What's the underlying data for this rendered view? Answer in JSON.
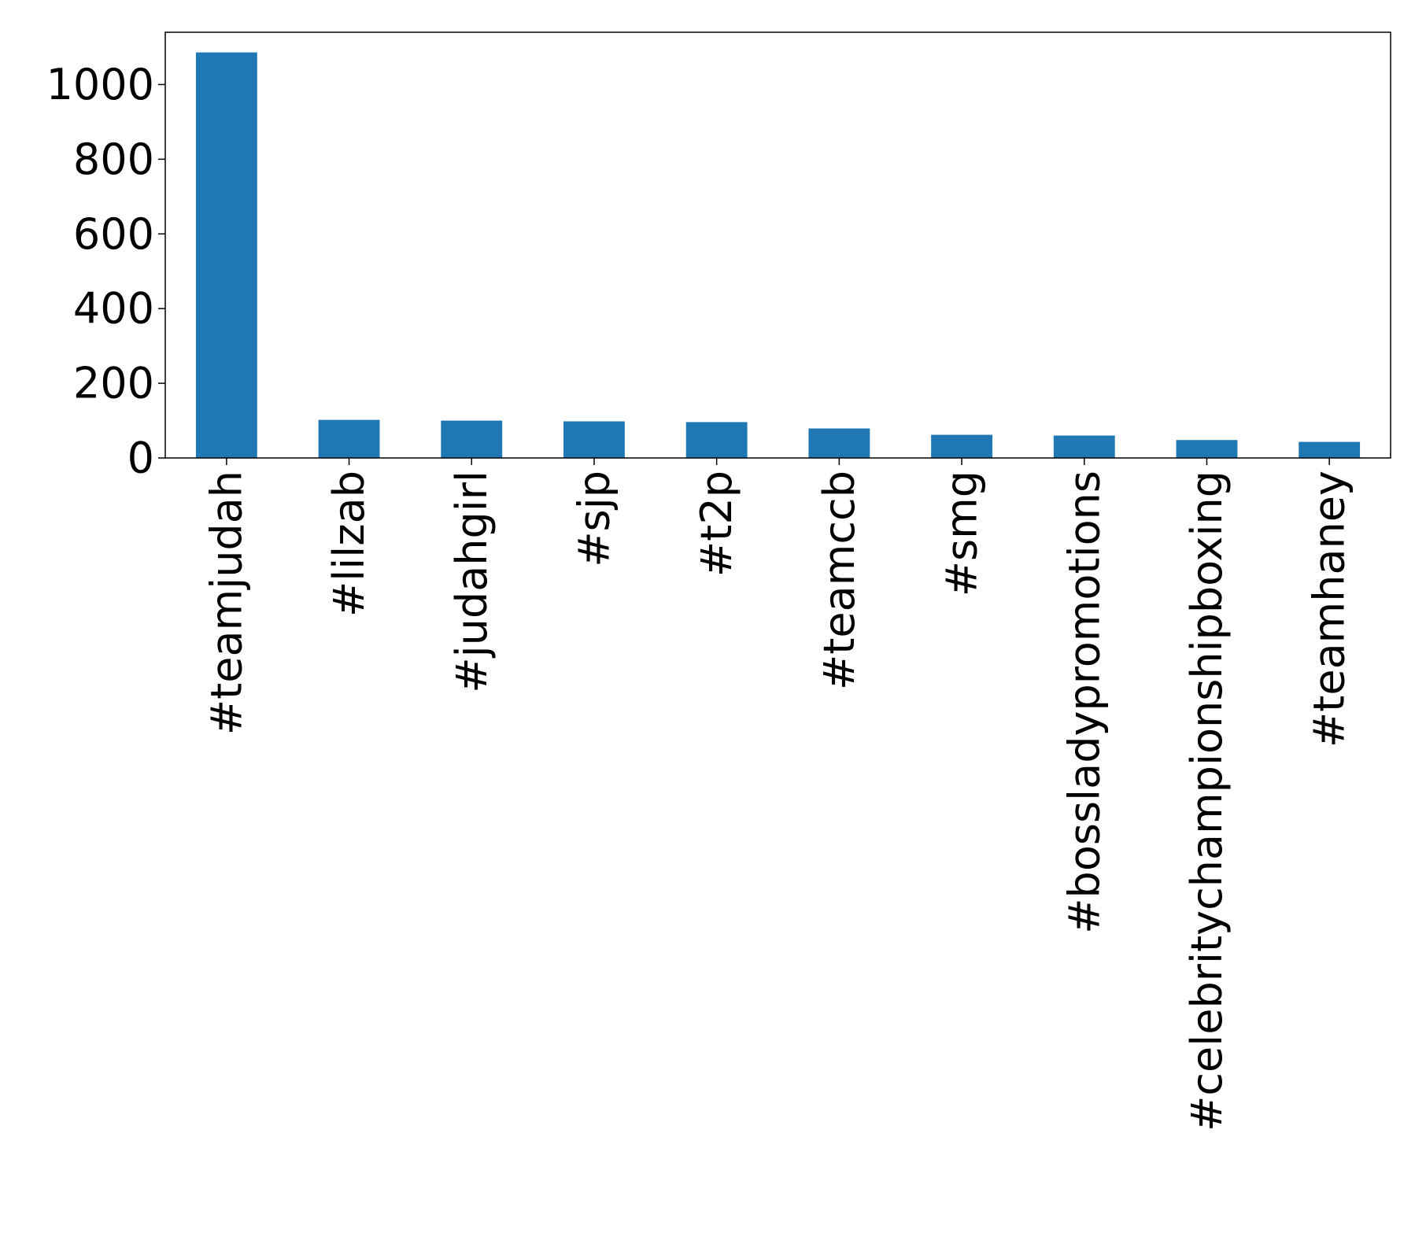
{
  "chart_data": {
    "type": "bar",
    "title": "",
    "xlabel": "",
    "ylabel": "",
    "categories": [
      "#teamjudah",
      "#lilzab",
      "#judahgirl",
      "#sjp",
      "#t2p",
      "#teamccb",
      "#smg",
      "#bossladypromotions",
      "#celebritychampionshipboxing",
      "#teamhaney"
    ],
    "values": [
      1086,
      102,
      100,
      98,
      96,
      79,
      62,
      60,
      48,
      43
    ],
    "ylim": [
      0,
      1140
    ],
    "yticks": [
      0,
      200,
      400,
      600,
      800,
      1000
    ],
    "grid": false,
    "legend": "none",
    "bar_color": "#1f77b4"
  }
}
